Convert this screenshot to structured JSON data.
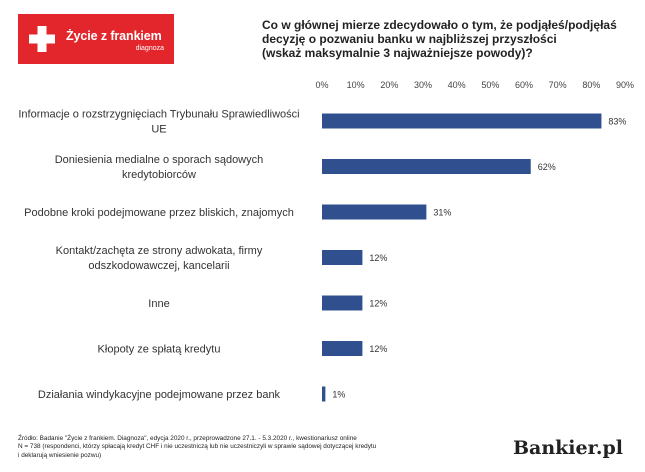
{
  "logo": {
    "name": "Życie z frankiem",
    "sub": "diagnoza",
    "color": "#e3262b"
  },
  "question": {
    "lines": [
      "Co w głównej mierze zdecydowało o tym, że podjąłeś/podjęłaś",
      "decyzję o pozwaniu banku w najbliższej przyszłości",
      "(wskaż maksymalnie 3 najważniejsze powody)?"
    ]
  },
  "chart_data": {
    "type": "bar",
    "orientation": "horizontal",
    "title": "Co w głównej mierze zdecydowało o tym, że podjąłeś/podjęłaś decyzję o pozwaniu banku w najbliższej przyszłości (wskaż maksymalnie 3 najważniejsze powody)?",
    "categories": [
      [
        "Informacje o rozstrzygnięciach Trybunału Sprawiedliwości",
        "UE"
      ],
      [
        "Doniesienia medialne o sporach sądowych",
        "kredytobiorców"
      ],
      [
        "Podobne kroki podejmowane przez bliskich, znajomych"
      ],
      [
        "Kontakt/zachęta ze strony adwokata, firmy",
        "odszkodowawczej, kancelarii"
      ],
      [
        "Inne"
      ],
      [
        "Kłopoty ze spłatą kredytu"
      ],
      [
        "Działania windykacyjne podejmowane przez bank"
      ]
    ],
    "values": [
      83,
      62,
      31,
      12,
      12,
      12,
      1
    ],
    "data_labels": [
      "83%",
      "62%",
      "31%",
      "12%",
      "12%",
      "12%",
      "1%"
    ],
    "x_ticks": [
      "0%",
      "10%",
      "20%",
      "30%",
      "40%",
      "50%",
      "60%",
      "70%",
      "80%",
      "90%"
    ],
    "xlim": [
      0,
      90
    ],
    "grid": false,
    "bar_color": "#2f4f8f"
  },
  "footnote": {
    "lines": [
      "Źródło: Badanie \"Życie z frankiem. Diagnoza\", edycja 2020 r., przeprowadzone 27.1. - 5.3.2020 r., kwestionariusz online",
      "N = 738  (respondenci, którzy spłacają kredyt CHF i nie uczestniczą lub nie uczestniczyli w sprawie sądowej dotyczącej kredytu",
      "i deklarują wniesienie pozwu)"
    ]
  },
  "brand": "Bankier.pl"
}
